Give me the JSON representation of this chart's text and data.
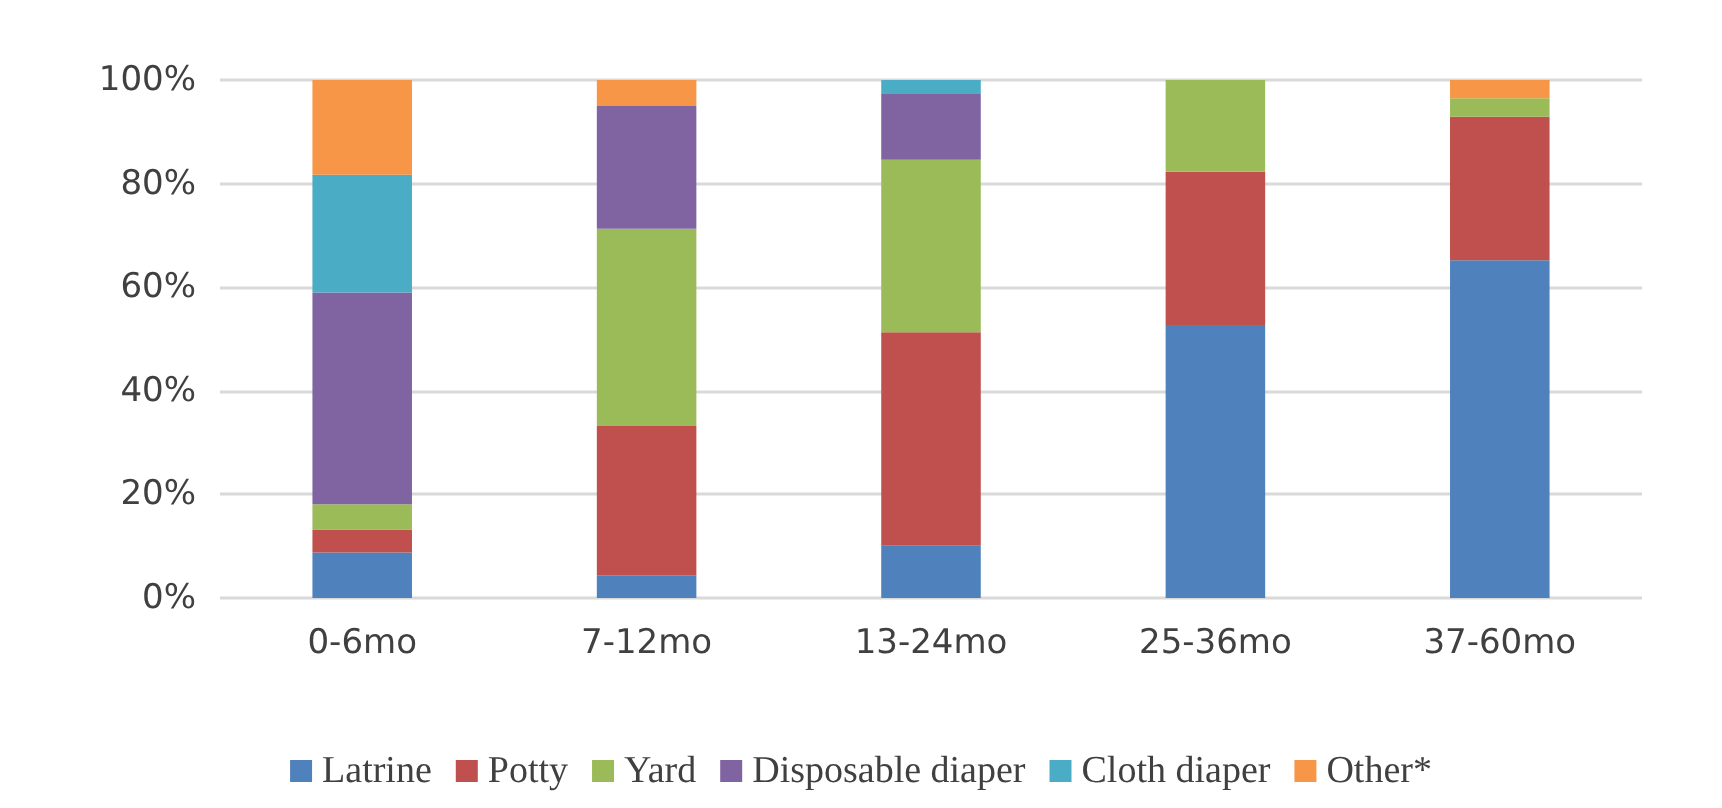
{
  "chart_data": {
    "type": "bar",
    "stacked": true,
    "categories": [
      "0-6mo",
      "7-12mo",
      "13-24mo",
      "25-36mo",
      "37-60mo"
    ],
    "series": [
      {
        "name": "Latrine",
        "color": "#4f81bd",
        "values": [
          8.8,
          4.4,
          10.1,
          52.7,
          65.2
        ]
      },
      {
        "name": "Potty",
        "color": "#c0504d",
        "values": [
          4.4,
          28.8,
          41.2,
          29.6,
          27.7
        ]
      },
      {
        "name": "Yard",
        "color": "#9bbb59",
        "values": [
          4.9,
          38.1,
          33.3,
          17.7,
          3.6
        ]
      },
      {
        "name": "Disposable diaper",
        "color": "#8064a2",
        "values": [
          40.9,
          23.7,
          12.7,
          0,
          0
        ]
      },
      {
        "name": "Cloth diaper",
        "color": "#4bacc6",
        "values": [
          22.7,
          0,
          2.7,
          0,
          0
        ]
      },
      {
        "name": "Other*",
        "color": "#f79646",
        "values": [
          18.3,
          5.0,
          0,
          0,
          3.5
        ]
      }
    ],
    "ylim": [
      0,
      100
    ],
    "yticks": [
      {
        "value": 0,
        "label": "0%"
      },
      {
        "value": 20,
        "label": "20%"
      },
      {
        "value": 40,
        "label": "40%"
      },
      {
        "value": 60,
        "label": "60%"
      },
      {
        "value": 80,
        "label": "80%"
      },
      {
        "value": 100,
        "label": "100%"
      }
    ],
    "grid": "y",
    "legend": "bottom"
  }
}
